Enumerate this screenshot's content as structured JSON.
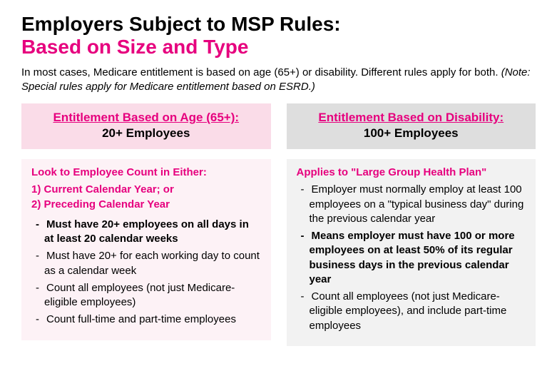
{
  "colors": {
    "accent": "#e6007e",
    "left_header_bg": "#fadce8",
    "left_body_bg": "#fdf2f6",
    "right_header_bg": "#dedede",
    "right_body_bg": "#f2f2f2",
    "text": "#000000"
  },
  "title": {
    "line1": "Employers Subject to MSP Rules:",
    "line2": "Based on Size and Type"
  },
  "intro": {
    "text": "In most cases, Medicare entitlement is based on age (65+) or disability.  Different rules apply for both.  ",
    "note": "(Note: Special rules apply for Medicare entitlement based on ESRD.)"
  },
  "left": {
    "header_title": "Entitlement Based on Age (65+):",
    "header_sub": "20+ Employees",
    "subhead": "Look to Employee Count in Either:",
    "numbered": [
      "1)  Current Calendar Year; or",
      "2)  Preceding Calendar Year"
    ],
    "bullets": [
      {
        "text": "Must have 20+ employees on all days in at least 20 calendar weeks",
        "bold": true
      },
      {
        "text": "Must have 20+ for each working day to count as a calendar week",
        "bold": false
      },
      {
        "text": "Count all employees (not just Medicare-eligible employees)",
        "bold": false
      },
      {
        "text": "Count full-time and part-time employees",
        "bold": false
      }
    ]
  },
  "right": {
    "header_title": "Entitlement Based on Disability:",
    "header_sub": "100+ Employees",
    "subhead": "Applies to \"Large Group Health Plan\"",
    "bullets": [
      {
        "text": "Employer must normally employ at least 100 employees on a \"typical business day\" during the previous calendar year",
        "bold": false
      },
      {
        "text": "Means employer must have 100 or more employees on at least 50% of its regular business days in the previous calendar year",
        "bold": true
      },
      {
        "text": "Count all employees (not just Medicare-eligible employees), and include part-time employees",
        "bold": false
      }
    ]
  }
}
